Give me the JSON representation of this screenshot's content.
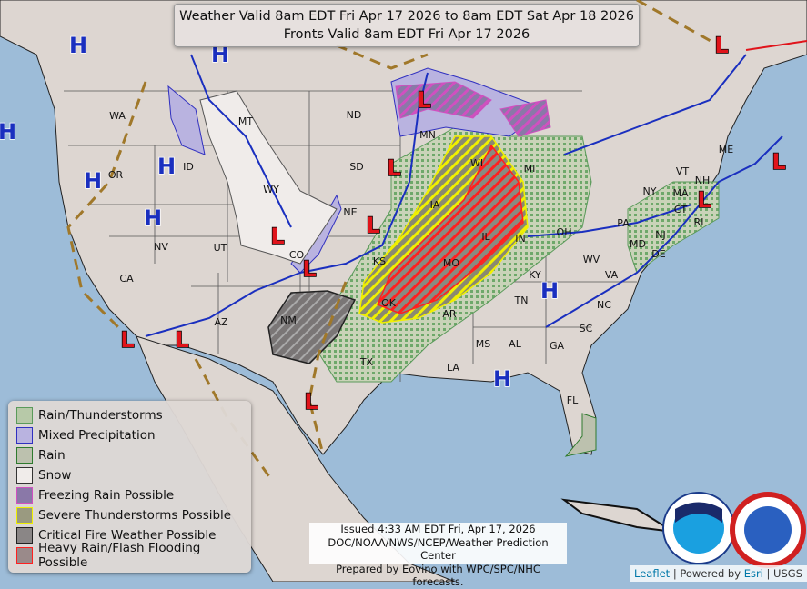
{
  "title": {
    "line1": "Weather Valid 8am EDT Fri Apr 17 2026 to 8am EDT Sat Apr 18 2026",
    "line2": "Fronts Valid 8am EDT Fri Apr 17 2026"
  },
  "legend": [
    {
      "label": "Rain/Thunderstorms",
      "fill": "#b7c9a8",
      "border": "#5a9a5a"
    },
    {
      "label": "Mixed Precipitation",
      "fill": "#b9b3e0",
      "border": "#3030c0"
    },
    {
      "label": "Rain",
      "fill": "#bcc1ae",
      "border": "#2e7a2e"
    },
    {
      "label": "Snow",
      "fill": "#f0ecea",
      "border": "#333333"
    },
    {
      "label": "Freezing Rain Possible",
      "fill": "#8a78a8",
      "border": "#d050c0"
    },
    {
      "label": "Severe Thunderstorms Possible",
      "fill": "#9a9a80",
      "border": "#f0f000"
    },
    {
      "label": "Critical Fire Weather Possible",
      "fill": "#8a8686",
      "border": "#222222"
    },
    {
      "label": "Heavy Rain/Flash Flooding Possible",
      "fill": "#9a8a8a",
      "border": "#ff2020"
    }
  ],
  "states": [
    "WA",
    "OR",
    "CA",
    "NV",
    "ID",
    "MT",
    "WY",
    "UT",
    "CO",
    "AZ",
    "NM",
    "ND",
    "SD",
    "NE",
    "KS",
    "OK",
    "TX",
    "MN",
    "IA",
    "MO",
    "AR",
    "LA",
    "WI",
    "IL",
    "MS",
    "AL",
    "MI",
    "IN",
    "KY",
    "TN",
    "GA",
    "FL",
    "OH",
    "WV",
    "VA",
    "NC",
    "SC",
    "PA",
    "NY",
    "MD",
    "DE",
    "NJ",
    "CT",
    "RI",
    "MA",
    "VT",
    "NH",
    "ME"
  ],
  "pressure_centers": {
    "high_label": "H",
    "low_label": "L",
    "high_color": "#1a2fbf",
    "low_color": "#e0141b"
  },
  "issued": {
    "line1": "Issued  4:33 AM EDT  Fri, Apr 17, 2026",
    "line2": "DOC/NOAA/NWS/NCEP/Weather Prediction Center",
    "line3": "Prepared by Eovino with WPC/SPC/NHC forecasts."
  },
  "logos": {
    "noaa": "NOAA",
    "nws": "NATIONAL WEATHER SERVICE"
  },
  "attribution": {
    "leaflet": "Leaflet",
    "powered": " | Powered by ",
    "esri": "Esri",
    "usgs": " | USGS"
  }
}
